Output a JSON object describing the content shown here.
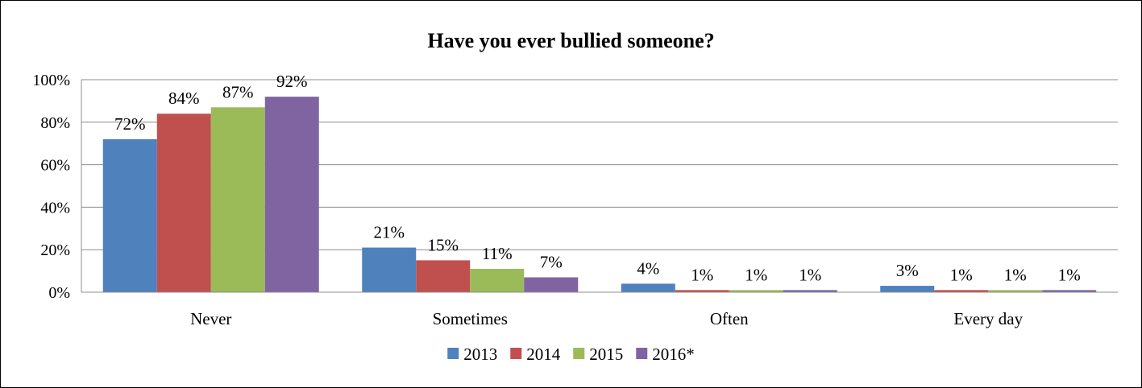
{
  "chart_data": {
    "type": "bar",
    "title": "Have you ever bullied someone?",
    "xlabel": "",
    "ylabel": "",
    "categories": [
      "Never",
      "Sometimes",
      "Often",
      "Every day"
    ],
    "series": [
      {
        "name": "2013",
        "values": [
          72,
          21,
          4,
          3
        ],
        "labels": [
          "72%",
          "21%",
          "4%",
          "3%"
        ],
        "color": "#4F81BD"
      },
      {
        "name": "2014",
        "values": [
          84,
          15,
          1,
          1
        ],
        "labels": [
          "84%",
          "15%",
          "1%",
          "1%"
        ],
        "color": "#C0504D"
      },
      {
        "name": "2015",
        "values": [
          87,
          11,
          1,
          1
        ],
        "labels": [
          "87%",
          "11%",
          "1%",
          "1%"
        ],
        "color": "#9BBB59"
      },
      {
        "name": "2016*",
        "values": [
          92,
          7,
          1,
          1
        ],
        "labels": [
          "92%",
          "7%",
          "1%",
          "1%"
        ],
        "color": "#8064A2"
      }
    ],
    "ylim": [
      0,
      100
    ],
    "y_ticks": [
      0,
      20,
      40,
      60,
      80,
      100
    ],
    "y_tick_labels": [
      "0%",
      "20%",
      "40%",
      "60%",
      "80%",
      "100%"
    ],
    "grid": true,
    "legend_position": "bottom"
  }
}
